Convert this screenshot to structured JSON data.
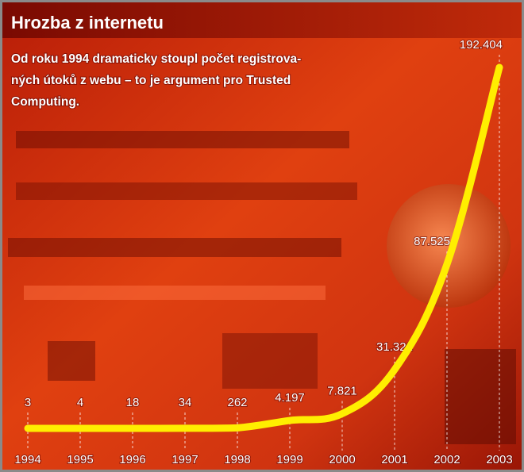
{
  "chart_data": {
    "type": "line",
    "title": "Hrozba z internetu",
    "subtitle": [
      "Od roku 1994 dramaticky stoupl počet registrova-",
      "ných útoků z webu – to je argument pro Trusted",
      "Computing."
    ],
    "categories": [
      "1994",
      "1995",
      "1996",
      "1997",
      "1998",
      "1999",
      "2000",
      "2001",
      "2002",
      "2003"
    ],
    "values": [
      3,
      4,
      18,
      34,
      262,
      4197,
      7821,
      31322,
      87525,
      192404
    ],
    "value_labels": [
      "3",
      "4",
      "18",
      "34",
      "262",
      "4.197",
      "7.821",
      "31.322",
      "87.525",
      "192.404"
    ],
    "color": "#ffee00"
  }
}
